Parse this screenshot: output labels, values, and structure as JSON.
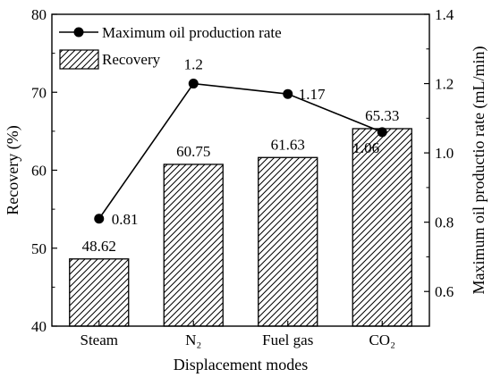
{
  "chart_data": {
    "type": "bar",
    "categories": [
      "Steam",
      "N₂",
      "Fuel gas",
      "CO₂"
    ],
    "xlabel": "Displacement modes",
    "ylabel": "Recovery (%)",
    "y2label": "Maximum oil productio rate (mL/min)",
    "ylim": [
      40,
      80
    ],
    "yticks": [
      "40",
      "50",
      "60",
      "70",
      "80"
    ],
    "y2lim": [
      0.5,
      1.4
    ],
    "y2ticks": [
      "0.6",
      "0.8",
      "1.0",
      "1.2",
      "1.4"
    ],
    "legend_position": "top-left",
    "series": [
      {
        "name": "Recovery",
        "type": "bar",
        "axis": "left",
        "pattern": "diagonal-hatch",
        "values": [
          48.62,
          60.75,
          61.63,
          65.33
        ],
        "labels": [
          "48.62",
          "60.75",
          "61.63",
          "65.33"
        ]
      },
      {
        "name": "Maximum oil production rate",
        "type": "line",
        "axis": "right",
        "marker": "filled-circle",
        "values": [
          0.81,
          1.2,
          1.17,
          1.06
        ],
        "labels": [
          "0.81",
          "1.2",
          "1.17",
          "1.06"
        ]
      }
    ],
    "colors": {
      "line": "#000000",
      "bar_fill": "#ffffff",
      "hatch": "#000000",
      "axes": "#000000"
    }
  }
}
